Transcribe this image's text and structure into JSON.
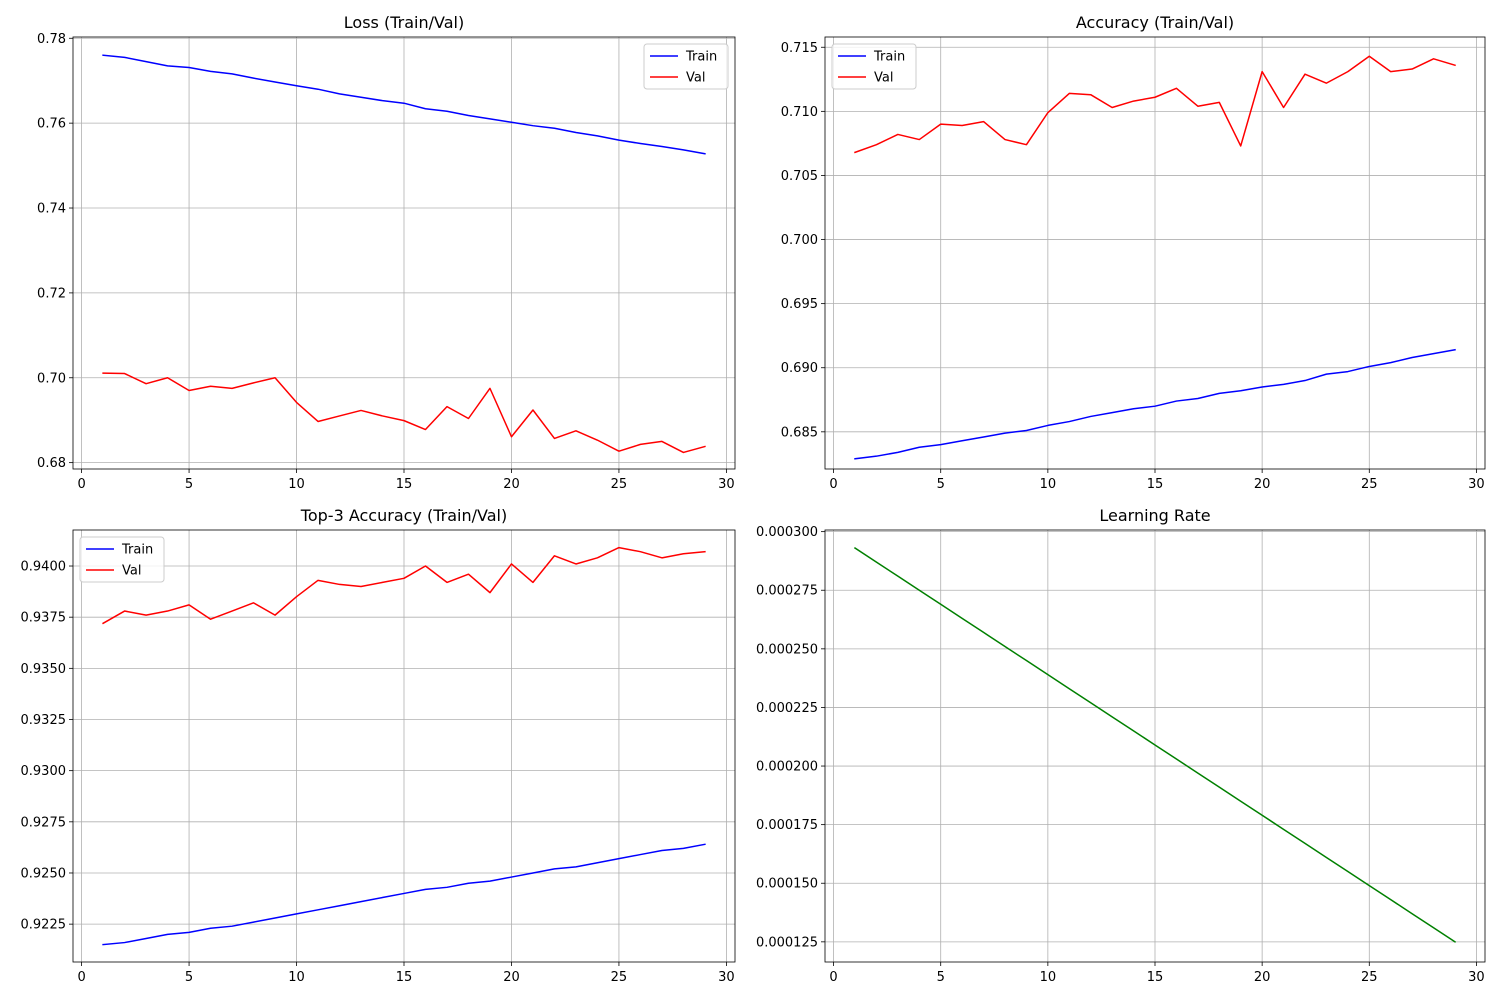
{
  "chart_data": [
    {
      "type": "line",
      "title": "Loss (Train/Val)",
      "xlabel": "",
      "ylabel": "",
      "xlim": [
        -0.4,
        30.4
      ],
      "ylim": [
        0.6785,
        0.7803
      ],
      "xticks": [
        0,
        5,
        10,
        15,
        20,
        25,
        30
      ],
      "yticks": [
        0.68,
        0.7,
        0.72,
        0.74,
        0.76,
        0.78
      ],
      "ytick_labels": [
        "0.68",
        "0.70",
        "0.72",
        "0.74",
        "0.76",
        "0.78"
      ],
      "grid": true,
      "legend": "upper right",
      "x": [
        1,
        2,
        3,
        4,
        5,
        6,
        7,
        8,
        9,
        10,
        11,
        12,
        13,
        14,
        15,
        16,
        17,
        18,
        19,
        20,
        21,
        22,
        23,
        24,
        25,
        26,
        27,
        28,
        29
      ],
      "series": [
        {
          "name": "Train",
          "color": "#0000ff",
          "values": [
            0.776,
            0.7755,
            0.7745,
            0.7735,
            0.7731,
            0.7722,
            0.7716,
            0.7706,
            0.7697,
            0.7688,
            0.768,
            0.7669,
            0.7661,
            0.7653,
            0.7647,
            0.7634,
            0.7628,
            0.7618,
            0.761,
            0.7602,
            0.7594,
            0.7588,
            0.7578,
            0.757,
            0.756,
            0.7552,
            0.7545,
            0.7537,
            0.7528
          ]
        },
        {
          "name": "Val",
          "color": "#ff0000",
          "values": [
            0.7011,
            0.701,
            0.6986,
            0.7,
            0.697,
            0.698,
            0.6975,
            0.6988,
            0.7,
            0.6942,
            0.6897,
            0.691,
            0.6923,
            0.691,
            0.6899,
            0.6878,
            0.6932,
            0.6904,
            0.6975,
            0.6861,
            0.6924,
            0.6857,
            0.6875,
            0.6853,
            0.6827,
            0.6843,
            0.685,
            0.6824,
            0.6838
          ]
        }
      ]
    },
    {
      "type": "line",
      "title": "Accuracy (Train/Val)",
      "xlabel": "",
      "ylabel": "",
      "xlim": [
        -0.4,
        30.4
      ],
      "ylim": [
        0.6821,
        0.7158
      ],
      "xticks": [
        0,
        5,
        10,
        15,
        20,
        25,
        30
      ],
      "yticks": [
        0.685,
        0.69,
        0.695,
        0.7,
        0.705,
        0.71,
        0.715
      ],
      "ytick_labels": [
        "0.685",
        "0.690",
        "0.695",
        "0.700",
        "0.705",
        "0.710",
        "0.715"
      ],
      "grid": true,
      "legend": "upper left",
      "x": [
        1,
        2,
        3,
        4,
        5,
        6,
        7,
        8,
        9,
        10,
        11,
        12,
        13,
        14,
        15,
        16,
        17,
        18,
        19,
        20,
        21,
        22,
        23,
        24,
        25,
        26,
        27,
        28,
        29
      ],
      "series": [
        {
          "name": "Train",
          "color": "#0000ff",
          "values": [
            0.6829,
            0.6831,
            0.6834,
            0.6838,
            0.684,
            0.6843,
            0.6846,
            0.6849,
            0.6851,
            0.6855,
            0.6858,
            0.6862,
            0.6865,
            0.6868,
            0.687,
            0.6874,
            0.6876,
            0.688,
            0.6882,
            0.6885,
            0.6887,
            0.689,
            0.6895,
            0.6897,
            0.6901,
            0.6904,
            0.6908,
            0.6911,
            0.6914
          ]
        },
        {
          "name": "Val",
          "color": "#ff0000",
          "values": [
            0.7068,
            0.7074,
            0.7082,
            0.7078,
            0.709,
            0.7089,
            0.7092,
            0.7078,
            0.7074,
            0.7099,
            0.7114,
            0.7113,
            0.7103,
            0.7108,
            0.7111,
            0.7118,
            0.7104,
            0.7107,
            0.7073,
            0.7131,
            0.7103,
            0.7129,
            0.7122,
            0.7131,
            0.7143,
            0.7131,
            0.7133,
            0.7141,
            0.7136
          ]
        }
      ]
    },
    {
      "type": "line",
      "title": "Top-3 Accuracy (Train/Val)",
      "xlabel": "",
      "ylabel": "",
      "xlim": [
        -0.4,
        30.4
      ],
      "ylim": [
        0.92065,
        0.94176
      ],
      "xticks": [
        0,
        5,
        10,
        15,
        20,
        25,
        30
      ],
      "yticks": [
        0.9225,
        0.925,
        0.9275,
        0.93,
        0.9325,
        0.935,
        0.9375,
        0.94
      ],
      "ytick_labels": [
        "0.9225",
        "0.9250",
        "0.9275",
        "0.9300",
        "0.9325",
        "0.9350",
        "0.9375",
        "0.9400"
      ],
      "grid": true,
      "legend": "upper left",
      "x": [
        1,
        2,
        3,
        4,
        5,
        6,
        7,
        8,
        9,
        10,
        11,
        12,
        13,
        14,
        15,
        16,
        17,
        18,
        19,
        20,
        21,
        22,
        23,
        24,
        25,
        26,
        27,
        28,
        29
      ],
      "series": [
        {
          "name": "Train",
          "color": "#0000ff",
          "values": [
            0.9215,
            0.9216,
            0.9218,
            0.922,
            0.9221,
            0.9223,
            0.9224,
            0.9226,
            0.9228,
            0.923,
            0.9232,
            0.9234,
            0.9236,
            0.9238,
            0.924,
            0.9242,
            0.9243,
            0.9245,
            0.9246,
            0.9248,
            0.925,
            0.9252,
            0.9253,
            0.9255,
            0.9257,
            0.9259,
            0.9261,
            0.9262,
            0.9264
          ]
        },
        {
          "name": "Val",
          "color": "#ff0000",
          "values": [
            0.9372,
            0.9378,
            0.9376,
            0.9378,
            0.9381,
            0.9374,
            0.9378,
            0.9382,
            0.9376,
            0.9385,
            0.9393,
            0.9391,
            0.939,
            0.9392,
            0.9394,
            0.94,
            0.9392,
            0.9396,
            0.9387,
            0.9401,
            0.9392,
            0.9405,
            0.9401,
            0.9404,
            0.9409,
            0.9407,
            0.9404,
            0.9406,
            0.9407
          ]
        }
      ]
    },
    {
      "type": "line",
      "title": "Learning Rate",
      "xlabel": "",
      "ylabel": "",
      "xlim": [
        -0.4,
        30.4
      ],
      "ylim": [
        0.0001164,
        0.0003007
      ],
      "xticks": [
        0,
        5,
        10,
        15,
        20,
        25,
        30
      ],
      "yticks": [
        0.000125,
        0.00015,
        0.000175,
        0.0002,
        0.000225,
        0.00025,
        0.000275,
        0.0003
      ],
      "ytick_labels": [
        "0.000125",
        "0.000150",
        "0.000175",
        "0.000200",
        "0.000225",
        "0.000250",
        "0.000275",
        "0.000300"
      ],
      "grid": true,
      "legend": "none",
      "x": [
        1,
        2,
        3,
        4,
        5,
        6,
        7,
        8,
        9,
        10,
        11,
        12,
        13,
        14,
        15,
        16,
        17,
        18,
        19,
        20,
        21,
        22,
        23,
        24,
        25,
        26,
        27,
        28,
        29
      ],
      "series": [
        {
          "color": "#008000",
          "values": [
            0.000293,
            0.000287,
            0.000281,
            0.000275,
            0.000269,
            0.000263,
            0.000257,
            0.000251,
            0.000245,
            0.000239,
            0.000233,
            0.000227,
            0.000221,
            0.000215,
            0.000209,
            0.000203,
            0.000197,
            0.000191,
            0.000185,
            0.000179,
            0.000173,
            0.000167,
            0.000161,
            0.000155,
            0.000149,
            0.000143,
            0.000137,
            0.000131,
            0.000125
          ]
        }
      ]
    }
  ]
}
